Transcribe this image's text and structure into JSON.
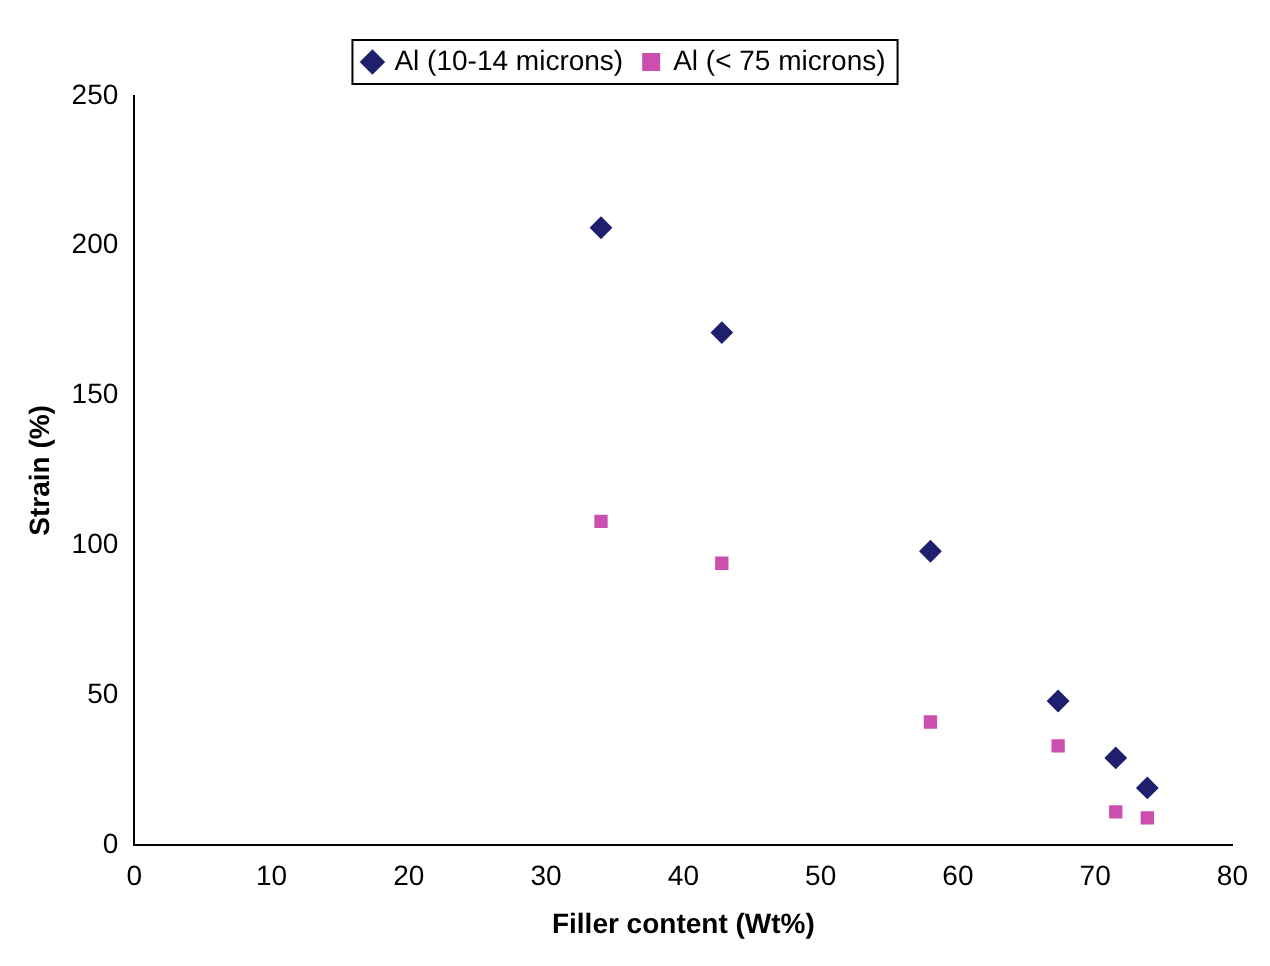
{
  "chart_data": {
    "type": "scatter",
    "xlabel": "Filler content (Wt%)",
    "ylabel": "Strain (%)",
    "series": [
      {
        "name": "Al (10-14 microns)",
        "color": "#1f1f6e",
        "marker": "diamond",
        "x": [
          34,
          42.8,
          58,
          67.3,
          71.5,
          73.8
        ],
        "values": [
          206,
          171,
          98,
          48,
          29,
          19
        ]
      },
      {
        "name": "Al (< 75 microns)",
        "color": "#cc4fb0",
        "marker": "square",
        "x": [
          34,
          42.8,
          58,
          67.3,
          71.5,
          73.8
        ],
        "values": [
          108,
          94,
          41,
          33,
          11,
          9
        ]
      }
    ],
    "xlim": [
      0,
      80
    ],
    "xticks": [
      0,
      10,
      20,
      30,
      40,
      50,
      60,
      70,
      80
    ],
    "ylim": [
      0,
      250
    ],
    "yticks": [
      0,
      50,
      100,
      150,
      200,
      250
    ],
    "grid": false,
    "legend": "top"
  }
}
